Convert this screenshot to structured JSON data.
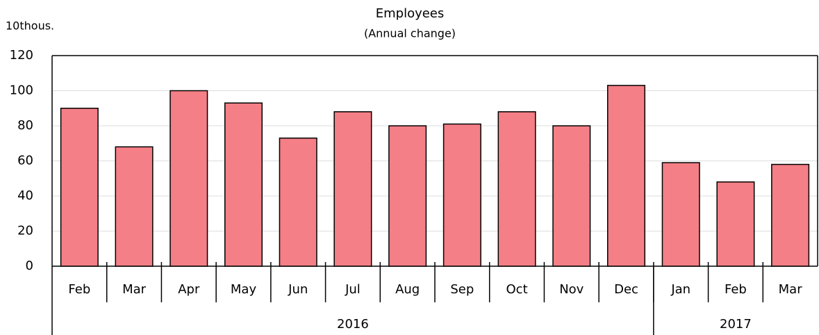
{
  "chart_data": {
    "type": "bar",
    "title": "Employees",
    "subtitle": "(Annual change)",
    "unit_label": "10thous.",
    "categories": [
      "Feb",
      "Mar",
      "Apr",
      "May",
      "Jun",
      "Jul",
      "Aug",
      "Sep",
      "Oct",
      "Nov",
      "Dec",
      "Jan",
      "Feb",
      "Mar"
    ],
    "groups": [
      {
        "label": "2016",
        "size": 11
      },
      {
        "label": "2017",
        "size": 3
      }
    ],
    "values": [
      90,
      68,
      100,
      93,
      73,
      88,
      80,
      81,
      88,
      80,
      103,
      59,
      48,
      58
    ],
    "color": "#f47f86",
    "ylim": [
      0,
      120
    ],
    "yticks": [
      0,
      20,
      40,
      60,
      80,
      100,
      120
    ],
    "grid": true
  }
}
